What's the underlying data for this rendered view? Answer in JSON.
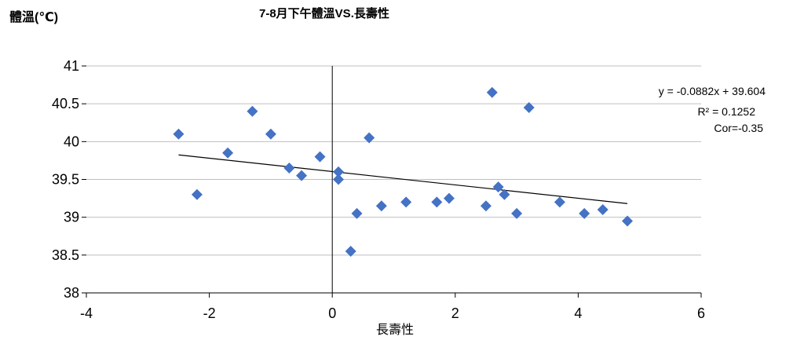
{
  "chart_data": {
    "type": "scatter",
    "title": "7-8月下午體溫VS.長壽性",
    "xlabel": "長壽性",
    "ylabel": "體溫(℃)",
    "xlim": [
      -4,
      6
    ],
    "ylim": [
      38,
      41
    ],
    "xticks": [
      -4,
      -2,
      0,
      2,
      4,
      6
    ],
    "yticks": [
      38,
      38.5,
      39,
      39.5,
      40,
      40.5,
      41
    ],
    "grid": true,
    "marker": "diamond",
    "marker_color": "#4472C4",
    "points": [
      {
        "x": -2.5,
        "y": 40.1
      },
      {
        "x": -2.2,
        "y": 39.3
      },
      {
        "x": -1.7,
        "y": 39.85
      },
      {
        "x": -1.3,
        "y": 40.4
      },
      {
        "x": -1.0,
        "y": 40.1
      },
      {
        "x": -0.7,
        "y": 39.65
      },
      {
        "x": -0.5,
        "y": 39.55
      },
      {
        "x": -0.2,
        "y": 39.8
      },
      {
        "x": 0.1,
        "y": 39.6
      },
      {
        "x": 0.1,
        "y": 39.5
      },
      {
        "x": 0.3,
        "y": 38.55
      },
      {
        "x": 0.4,
        "y": 39.05
      },
      {
        "x": 0.6,
        "y": 40.05
      },
      {
        "x": 0.8,
        "y": 39.15
      },
      {
        "x": 1.2,
        "y": 39.2
      },
      {
        "x": 1.7,
        "y": 39.2
      },
      {
        "x": 1.9,
        "y": 39.25
      },
      {
        "x": 2.5,
        "y": 39.15
      },
      {
        "x": 2.6,
        "y": 40.65
      },
      {
        "x": 2.7,
        "y": 39.4
      },
      {
        "x": 2.8,
        "y": 39.3
      },
      {
        "x": 3.0,
        "y": 39.05
      },
      {
        "x": 3.2,
        "y": 40.45
      },
      {
        "x": 3.7,
        "y": 39.2
      },
      {
        "x": 4.1,
        "y": 39.05
      },
      {
        "x": 4.4,
        "y": 39.1
      },
      {
        "x": 4.8,
        "y": 38.95
      }
    ],
    "trendline": {
      "type": "linear",
      "slope": -0.0882,
      "intercept": 39.604,
      "x_range": [
        -2.5,
        4.8
      ],
      "color": "#000000"
    },
    "annotations": [
      "y = -0.0882x + 39.604",
      "R² = 0.1252",
      "Cor=-0.35"
    ]
  }
}
